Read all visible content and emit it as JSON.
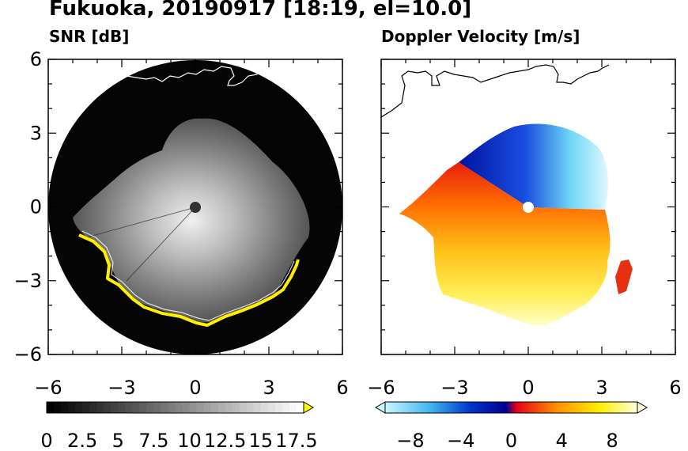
{
  "title": "Fukuoka, 20190917 [18:19, el=10.0]",
  "chart_data": [
    {
      "type": "heatmap",
      "title": "SNR [dB]",
      "xlim": [
        -6,
        6
      ],
      "ylim": [
        -6,
        6
      ],
      "xticks": [
        -6,
        -3,
        0,
        3,
        6
      ],
      "yticks": [
        6,
        3,
        0,
        -3,
        -6
      ],
      "colorbar": {
        "min": 0,
        "max": 18,
        "ticks": [
          "0",
          "2.5",
          "5",
          "7.5",
          "10",
          "12.5",
          "15",
          "17.5"
        ],
        "extend": "max",
        "colors": [
          "#000000",
          "#ffffff",
          "#ffff00"
        ]
      },
      "colors": {
        "background": "#000000",
        "echo": "#c8c8c8",
        "edge": "#ffee00",
        "coast": "#ffffff"
      }
    },
    {
      "type": "heatmap",
      "title": "Doppler Velocity [m/s]",
      "xlim": [
        -6,
        6
      ],
      "ylim": [
        -6,
        6
      ],
      "xticks": [
        -6,
        -3,
        0,
        3,
        6
      ],
      "colorbar": {
        "min": -10,
        "max": 10,
        "ticks": [
          "−8",
          "−4",
          "0",
          "4",
          "8"
        ],
        "extend": "both",
        "colors": [
          "#c9f7ff",
          "#3fb5ee",
          "#0033cc",
          "#00008f",
          "#e6001a",
          "#ff9000",
          "#ffee00",
          "#ffffdc"
        ]
      },
      "colors": {
        "approaching": "#0033cc",
        "receding": "#ff6a00",
        "coast": "#000000"
      }
    }
  ]
}
